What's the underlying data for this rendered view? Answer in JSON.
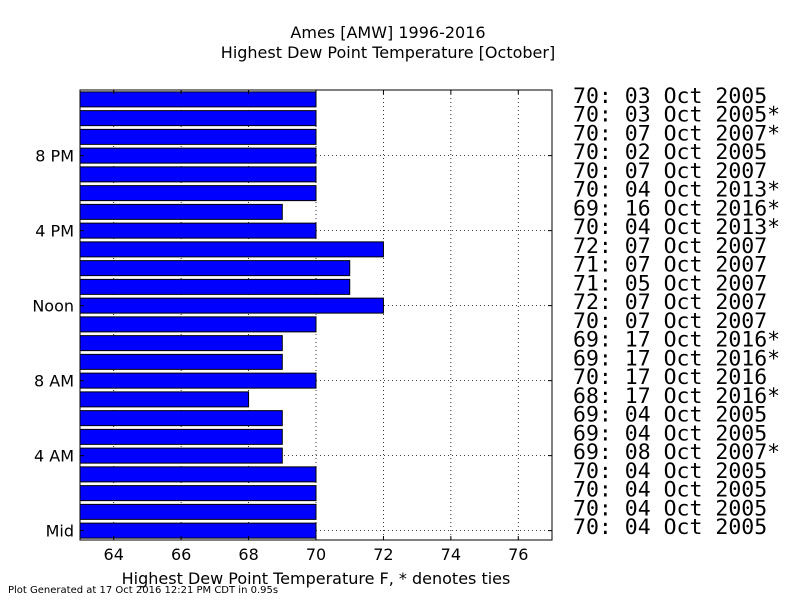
{
  "chart_data": {
    "type": "bar",
    "orientation": "horizontal",
    "title": "Ames [AMW] 1996-2016",
    "subtitle": "Highest Dew Point Temperature [October]",
    "xlabel": "Highest Dew Point Temperature F, * denotes ties",
    "ylabel": "",
    "xlim": [
      63,
      77
    ],
    "ylim": [
      -0.5,
      23.5
    ],
    "xticks": [
      64,
      66,
      68,
      70,
      72,
      74,
      76
    ],
    "y_tick_labels": [
      {
        "hour": 0,
        "label": "Mid"
      },
      {
        "hour": 4,
        "label": "4 AM"
      },
      {
        "hour": 8,
        "label": "8 AM"
      },
      {
        "hour": 12,
        "label": "Noon"
      },
      {
        "hour": 16,
        "label": "4 PM"
      },
      {
        "hour": 20,
        "label": "8 PM"
      }
    ],
    "grid": true,
    "bar_color": "#0000ff",
    "hours": [
      0,
      1,
      2,
      3,
      4,
      5,
      6,
      7,
      8,
      9,
      10,
      11,
      12,
      13,
      14,
      15,
      16,
      17,
      18,
      19,
      20,
      21,
      22,
      23
    ],
    "values": [
      70,
      70,
      70,
      70,
      69,
      69,
      69,
      68,
      70,
      69,
      69,
      70,
      72,
      71,
      71,
      72,
      70,
      69,
      70,
      70,
      70,
      70,
      70,
      70
    ],
    "annotations": [
      "70: 04 Oct 2005",
      "70: 04 Oct 2005",
      "70: 04 Oct 2005",
      "70: 04 Oct 2005",
      "69: 08 Oct 2007*",
      "69: 04 Oct 2005",
      "69: 04 Oct 2005",
      "68: 17 Oct 2016*",
      "70: 17 Oct 2016",
      "69: 17 Oct 2016*",
      "69: 17 Oct 2016*",
      "70: 07 Oct 2007",
      "72: 07 Oct 2007",
      "71: 05 Oct 2007",
      "71: 07 Oct 2007",
      "72: 07 Oct 2007",
      "70: 04 Oct 2013*",
      "69: 16 Oct 2016*",
      "70: 04 Oct 2013*",
      "70: 07 Oct 2007",
      "70: 02 Oct 2005",
      "70: 07 Oct 2007*",
      "70: 03 Oct 2005*",
      "70: 03 Oct 2005"
    ]
  },
  "footer": "Plot Generated at 17 Oct 2016 12:21 PM CDT in 0.95s"
}
